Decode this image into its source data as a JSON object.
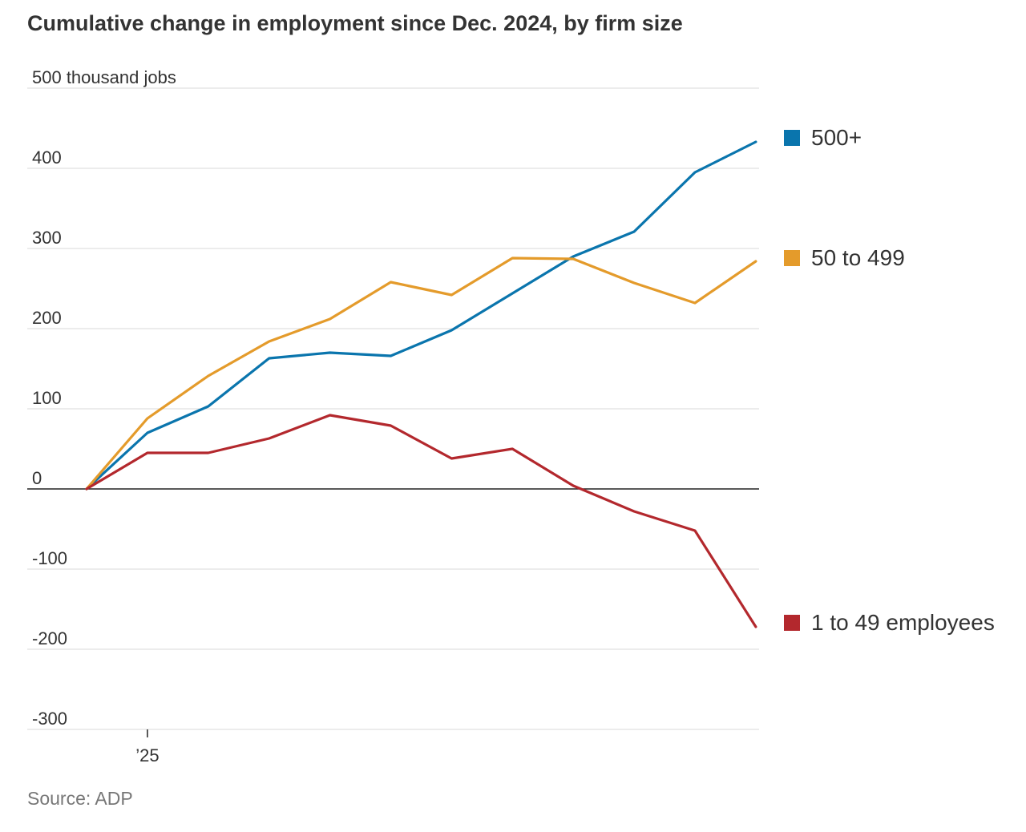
{
  "title": "Cumulative change in employment since Dec. 2024, by firm size",
  "source": "Source: ADP",
  "chart_data": {
    "type": "line",
    "title": "Cumulative change in employment since Dec. 2024, by firm size",
    "ylabel": "",
    "y_unit_label": "500 thousand jobs",
    "ylim": [
      -300,
      500
    ],
    "y_ticks": [
      {
        "value": 500,
        "label": "500 thousand jobs"
      },
      {
        "value": 400,
        "label": "400"
      },
      {
        "value": 300,
        "label": "300"
      },
      {
        "value": 200,
        "label": "200"
      },
      {
        "value": 100,
        "label": "100"
      },
      {
        "value": 0,
        "label": "0"
      },
      {
        "value": -100,
        "label": "-100"
      },
      {
        "value": -200,
        "label": "-200"
      },
      {
        "value": -300,
        "label": "-300"
      }
    ],
    "x": [
      "2024-12",
      "2025-01",
      "2025-02",
      "2025-03",
      "2025-04",
      "2025-05",
      "2025-06",
      "2025-07",
      "2025-08",
      "2025-09",
      "2025-10",
      "2025-11",
      "2025-12"
    ],
    "x_ticks": [
      {
        "x": "2025-01",
        "label": "’25"
      }
    ],
    "grid": true,
    "legend": "right",
    "series": [
      {
        "name": "500+",
        "color": "#0a75ad",
        "values": [
          0,
          70,
          103,
          163,
          170,
          166,
          198,
          244,
          290,
          321,
          395,
          433,
          null
        ]
      },
      {
        "name": "50 to 499",
        "color": "#e49b2b",
        "values": [
          0,
          88,
          141,
          184,
          212,
          258,
          242,
          288,
          287,
          257,
          232,
          284,
          null
        ]
      },
      {
        "name": "1 to 49 employees",
        "color": "#b3282d",
        "values": [
          0,
          45,
          45,
          63,
          92,
          79,
          38,
          50,
          4,
          -28,
          -52,
          -172,
          null
        ]
      }
    ]
  }
}
